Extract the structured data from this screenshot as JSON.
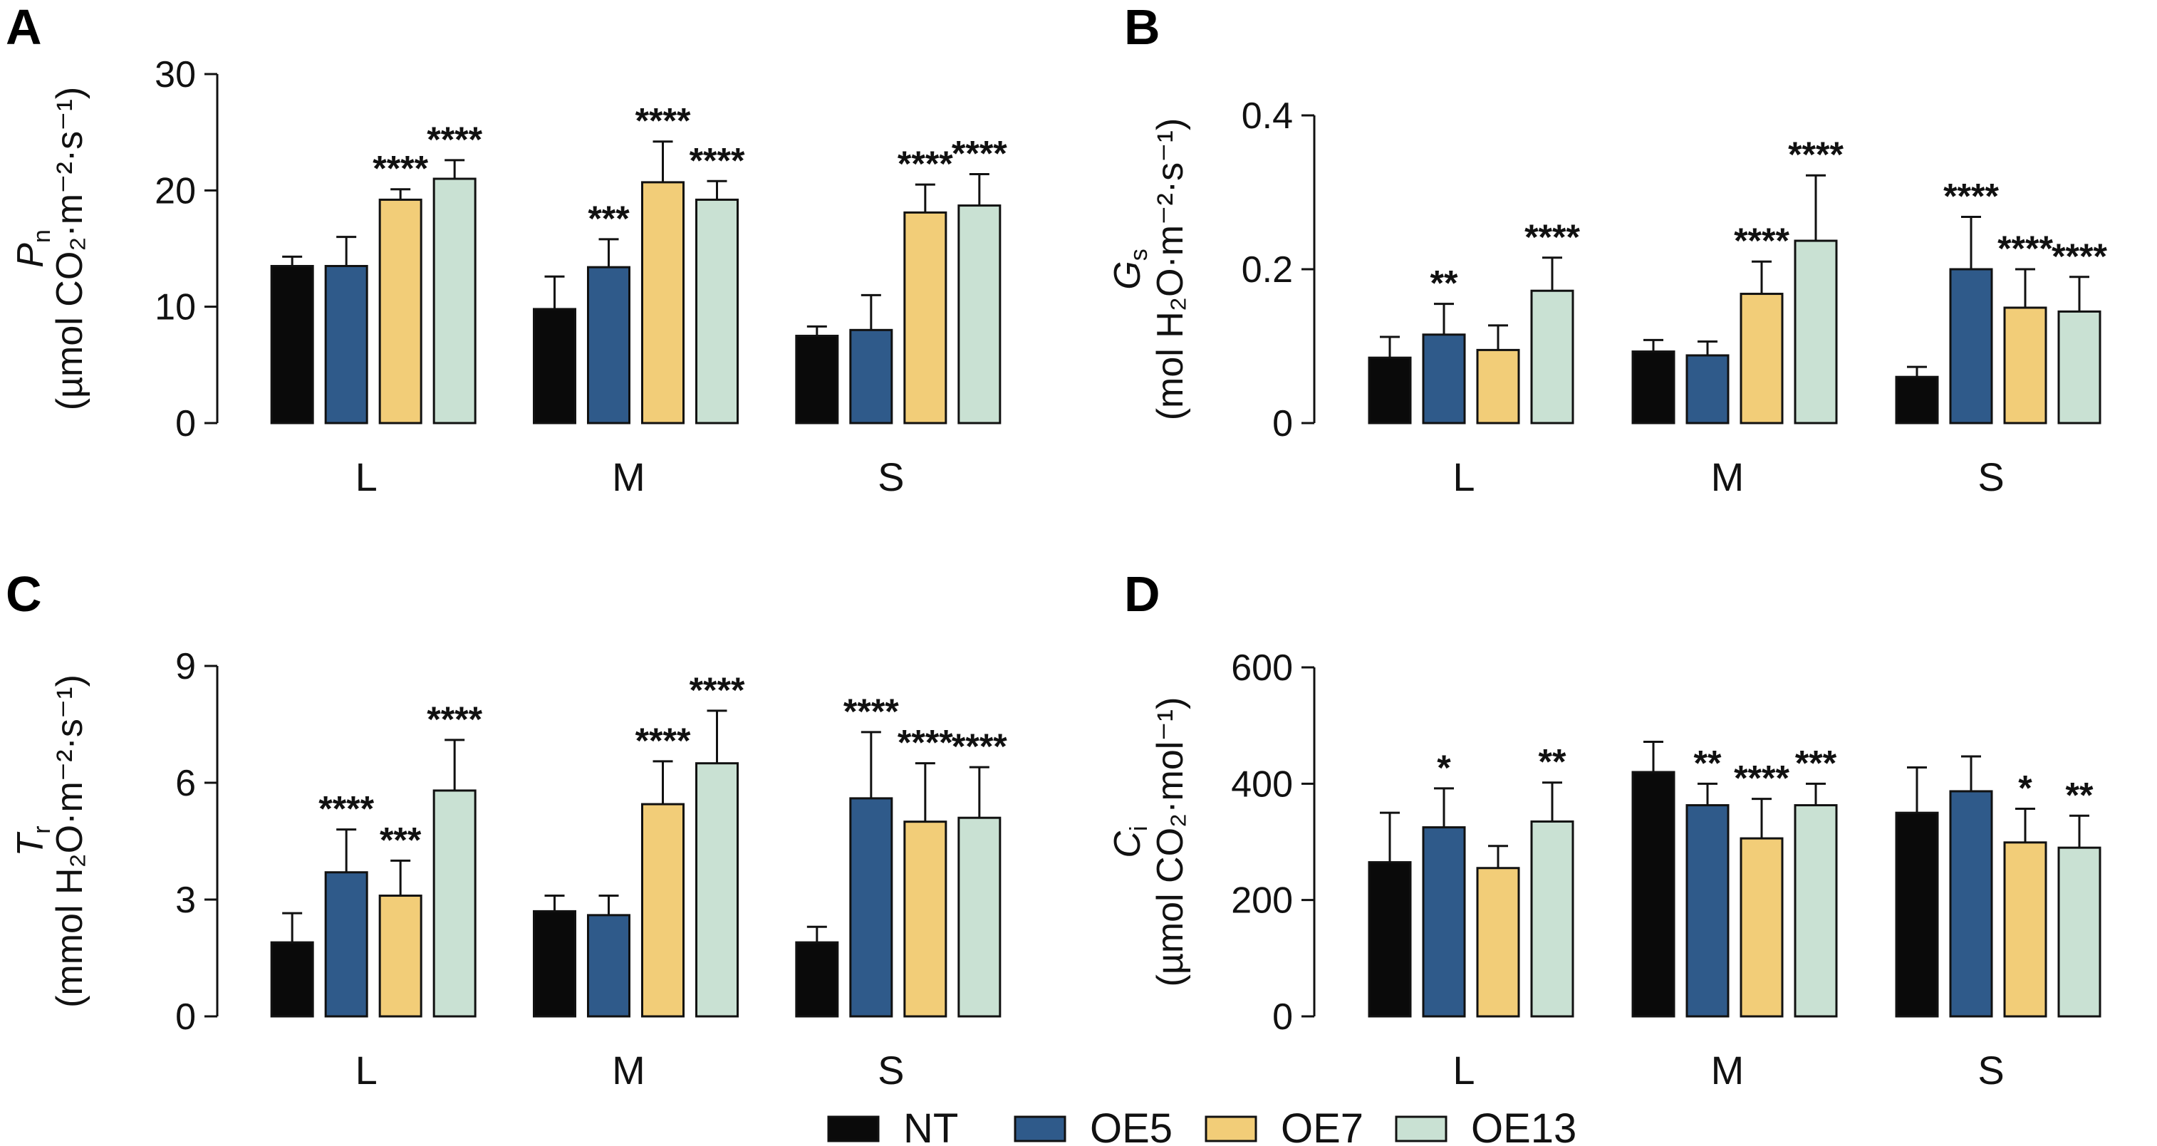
{
  "chart_data": [
    {
      "type": "bar",
      "panel_label": "A",
      "ylabel": {
        "main": "P",
        "main_sub": "n",
        "unit": "(µmol CO₂·m⁻²·s⁻¹)"
      },
      "ylim": [
        0,
        30
      ],
      "yticks": [
        "0",
        "10",
        "20",
        "30"
      ],
      "categories": [
        "L",
        "M",
        "S"
      ],
      "series": [
        {
          "name": "NT",
          "values": [
            13.5,
            9.8,
            7.5
          ],
          "errors": [
            0.8,
            2.8,
            0.8
          ],
          "sig": [
            "",
            "",
            ""
          ]
        },
        {
          "name": "OE5",
          "values": [
            13.5,
            13.4,
            8.0
          ],
          "errors": [
            2.5,
            2.4,
            3.0
          ],
          "sig": [
            "",
            "***",
            ""
          ]
        },
        {
          "name": "OE7",
          "values": [
            19.2,
            20.7,
            18.1
          ],
          "errors": [
            0.9,
            3.5,
            2.4
          ],
          "sig": [
            "****",
            "****",
            "****"
          ]
        },
        {
          "name": "OE13",
          "values": [
            21.0,
            19.2,
            18.7
          ],
          "errors": [
            1.6,
            1.6,
            2.7
          ],
          "sig": [
            "****",
            "****",
            "****"
          ]
        }
      ]
    },
    {
      "type": "bar",
      "panel_label": "B",
      "ylabel": {
        "main": "G",
        "main_sub": "s",
        "unit": "(mol H₂O·m⁻²·s⁻¹)"
      },
      "ylim": [
        0,
        0.4
      ],
      "yticks": [
        "0",
        "0.2",
        "0.4"
      ],
      "categories": [
        "L",
        "M",
        "S"
      ],
      "series": [
        {
          "name": "NT",
          "values": [
            0.085,
            0.093,
            0.06
          ],
          "errors": [
            0.027,
            0.015,
            0.013
          ],
          "sig": [
            "",
            "",
            ""
          ]
        },
        {
          "name": "OE5",
          "values": [
            0.115,
            0.088,
            0.2
          ],
          "errors": [
            0.04,
            0.018,
            0.068
          ],
          "sig": [
            "**",
            "",
            "****"
          ]
        },
        {
          "name": "OE7",
          "values": [
            0.095,
            0.168,
            0.15
          ],
          "errors": [
            0.032,
            0.042,
            0.05
          ],
          "sig": [
            "",
            "****",
            "****"
          ]
        },
        {
          "name": "OE13",
          "values": [
            0.172,
            0.237,
            0.145
          ],
          "errors": [
            0.043,
            0.085,
            0.045
          ],
          "sig": [
            "****",
            "****",
            "****"
          ]
        }
      ]
    },
    {
      "type": "bar",
      "panel_label": "C",
      "ylabel": {
        "main": "T",
        "main_sub": "r",
        "unit": "(mmol H₂O·m⁻²·s⁻¹)"
      },
      "ylim": [
        0,
        9
      ],
      "yticks": [
        "0",
        "3",
        "6",
        "9"
      ],
      "categories": [
        "L",
        "M",
        "S"
      ],
      "series": [
        {
          "name": "NT",
          "values": [
            1.9,
            2.7,
            1.9
          ],
          "errors": [
            0.75,
            0.4,
            0.4
          ],
          "sig": [
            "",
            "",
            ""
          ]
        },
        {
          "name": "OE5",
          "values": [
            3.7,
            2.6,
            5.6
          ],
          "errors": [
            1.1,
            0.5,
            1.7
          ],
          "sig": [
            "****",
            "",
            "****"
          ]
        },
        {
          "name": "OE7",
          "values": [
            3.1,
            5.45,
            5.0
          ],
          "errors": [
            0.9,
            1.1,
            1.5
          ],
          "sig": [
            "***",
            "****",
            "****"
          ]
        },
        {
          "name": "OE13",
          "values": [
            5.8,
            6.5,
            5.1
          ],
          "errors": [
            1.3,
            1.35,
            1.3
          ],
          "sig": [
            "****",
            "****",
            "****"
          ]
        }
      ]
    },
    {
      "type": "bar",
      "panel_label": "D",
      "ylabel": {
        "main": "C",
        "main_sub": "i",
        "unit": "(µmol CO₂·mol⁻¹)"
      },
      "ylim": [
        0,
        600
      ],
      "yticks": [
        "0",
        "200",
        "400",
        "600"
      ],
      "categories": [
        "L",
        "M",
        "S"
      ],
      "series": [
        {
          "name": "NT",
          "values": [
            265,
            420,
            350
          ],
          "errors": [
            85,
            52,
            78
          ],
          "sig": [
            "",
            "",
            ""
          ]
        },
        {
          "name": "OE5",
          "values": [
            325,
            363,
            387
          ],
          "errors": [
            67,
            37,
            60
          ],
          "sig": [
            "*",
            "**",
            ""
          ]
        },
        {
          "name": "OE7",
          "values": [
            255,
            306,
            299
          ],
          "errors": [
            38,
            68,
            58
          ],
          "sig": [
            "",
            "****",
            "*"
          ]
        },
        {
          "name": "OE13",
          "values": [
            335,
            363,
            290
          ],
          "errors": [
            67,
            37,
            55
          ],
          "sig": [
            "**",
            "***",
            "**"
          ]
        }
      ]
    }
  ],
  "legend": [
    {
      "name": "NT",
      "color": "#0a0a0a"
    },
    {
      "name": "OE5",
      "color": "#2f5a8a"
    },
    {
      "name": "OE7",
      "color": "#f2cd78"
    },
    {
      "name": "OE13",
      "color": "#c9e1d3"
    }
  ]
}
